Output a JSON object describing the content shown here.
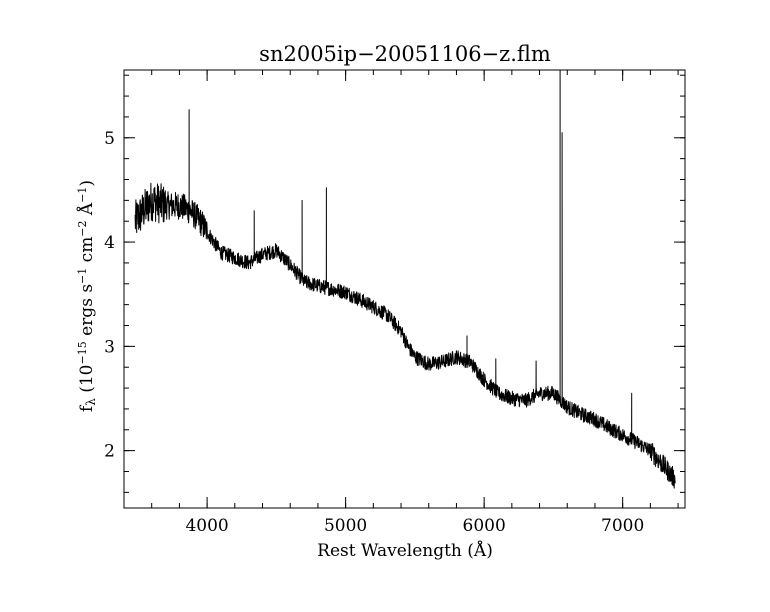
{
  "chart_data": {
    "type": "line",
    "title": "sn2005ip−20051106−z.flm",
    "xlabel": "Rest Wavelength (Å)",
    "ylabel": "fλ (10⁻¹⁵ ergs s⁻¹ cm⁻² Å⁻¹)",
    "ylabel_parts": {
      "f": "f",
      "lambda": "λ",
      "open": " (10",
      "exp15": "−15",
      "ergs": " ergs s",
      "exp1": "−1",
      "cm": " cm",
      "exp2": "−2",
      "ang": " Å",
      "exp1b": "−1",
      "close": ")"
    },
    "xlim": [
      3400,
      7450
    ],
    "ylim": [
      1.45,
      5.65
    ],
    "x_ticks": [
      4000,
      5000,
      6000,
      7000
    ],
    "x_tick_labels": [
      "4000",
      "5000",
      "6000",
      "7000"
    ],
    "y_ticks": [
      2,
      3,
      4,
      5
    ],
    "y_tick_labels": [
      "2",
      "3",
      "4",
      "5"
    ],
    "x_minor_step": 200,
    "y_minor_step": 0.2,
    "grid": false,
    "legend": "none",
    "line_color": "#000000",
    "noise_amplitude": 0.07,
    "continuum": {
      "x": [
        3480,
        3600,
        3700,
        3800,
        3880,
        3950,
        4000,
        4100,
        4200,
        4300,
        4400,
        4500,
        4550,
        4600,
        4700,
        4800,
        4900,
        5000,
        5100,
        5200,
        5300,
        5400,
        5450,
        5500,
        5600,
        5700,
        5800,
        5900,
        6000,
        6100,
        6200,
        6300,
        6400,
        6500,
        6600,
        6700,
        6800,
        6900,
        7000,
        7100,
        7200,
        7300,
        7380
      ],
      "y": [
        4.2,
        4.4,
        4.35,
        4.35,
        4.3,
        4.2,
        4.1,
        3.9,
        3.85,
        3.8,
        3.88,
        3.92,
        3.85,
        3.78,
        3.62,
        3.58,
        3.55,
        3.52,
        3.45,
        3.38,
        3.3,
        3.15,
        3.0,
        2.9,
        2.83,
        2.85,
        2.9,
        2.85,
        2.68,
        2.55,
        2.5,
        2.48,
        2.55,
        2.55,
        2.42,
        2.35,
        2.3,
        2.22,
        2.15,
        2.08,
        2.0,
        1.85,
        1.72
      ]
    },
    "emission_lines": [
      {
        "x": 3870,
        "y": 5.27
      },
      {
        "x": 4340,
        "y": 4.3
      },
      {
        "x": 4686,
        "y": 4.4
      },
      {
        "x": 4861,
        "y": 4.52
      },
      {
        "x": 5876,
        "y": 3.1
      },
      {
        "x": 6084,
        "y": 2.88
      },
      {
        "x": 6375,
        "y": 2.86
      },
      {
        "x": 6548,
        "y": 5.65
      },
      {
        "x": 6563,
        "y": 5.05
      },
      {
        "x": 7065,
        "y": 2.55
      }
    ]
  }
}
